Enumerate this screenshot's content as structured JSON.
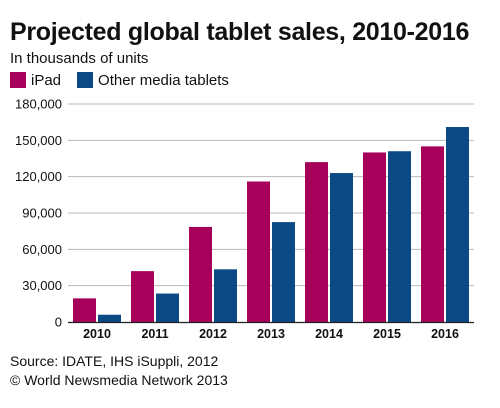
{
  "chart_data": {
    "type": "bar",
    "title": "Projected global tablet sales, 2010-2016",
    "subtitle": "In thousands of units",
    "categories": [
      "2010",
      "2011",
      "2012",
      "2013",
      "2014",
      "2015",
      "2016"
    ],
    "series": [
      {
        "name": "iPad",
        "color": "#a6005a",
        "values": [
          19500,
          42000,
          78500,
          116000,
          132000,
          140000,
          145000
        ]
      },
      {
        "name": "Other media tablets",
        "color": "#0c4a86",
        "values": [
          6000,
          23500,
          43500,
          82500,
          123000,
          141000,
          161000
        ]
      }
    ],
    "y_ticks": [
      "0",
      "30,000",
      "60,000",
      "90,000",
      "120,000",
      "150,000",
      "180,000"
    ],
    "ylim": [
      0,
      180000
    ],
    "grid": true,
    "legend": "top-left"
  },
  "footer": {
    "source": "Source: IDATE, IHS iSuppli, 2012",
    "copyright": "© World Newsmedia Network 2013"
  }
}
